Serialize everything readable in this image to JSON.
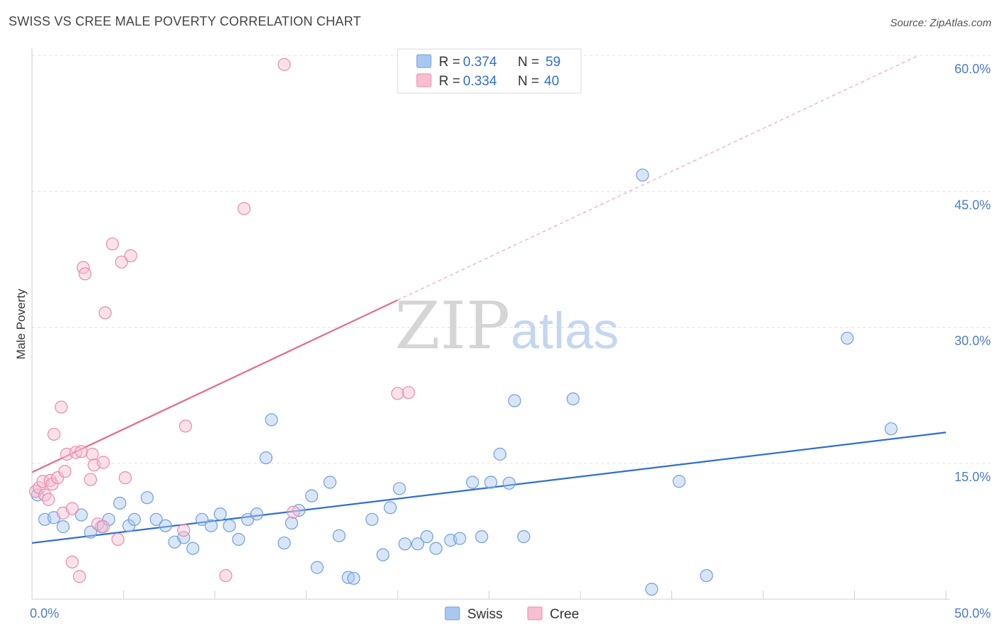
{
  "header": {
    "title": "SWISS VS CREE MALE POVERTY CORRELATION CHART",
    "source": "Source: ZipAtlas.com"
  },
  "watermark": {
    "zip": "ZIP",
    "atlas": "atlas"
  },
  "legend_top": [
    {
      "r_label": "R =",
      "r_value": "0.374",
      "n_label": "N =",
      "n_value": "59",
      "color": "#a9c8f0",
      "border": "#6f9fe0"
    },
    {
      "r_label": "R =",
      "r_value": "0.334",
      "n_label": "N =",
      "n_value": "40",
      "color": "#f7bfd0",
      "border": "#e98aab"
    }
  ],
  "legend_bottom": [
    {
      "label": "Swiss",
      "color": "#a9c8f0",
      "border": "#6f9fe0"
    },
    {
      "label": "Cree",
      "color": "#f7bfd0",
      "border": "#e98aab"
    }
  ],
  "chart_data": {
    "type": "scatter",
    "title": "SWISS VS CREE MALE POVERTY CORRELATION CHART",
    "xlabel": "",
    "ylabel": "Male Poverty",
    "xlim": [
      0,
      50
    ],
    "ylim": [
      0,
      60
    ],
    "x_tick_labels": [
      "0.0%",
      "50.0%"
    ],
    "y_ticks": [
      15,
      30,
      45,
      60
    ],
    "y_tick_labels": [
      "15.0%",
      "30.0%",
      "45.0%",
      "60.0%"
    ],
    "grid": true,
    "legend_position": "top-center",
    "series": [
      {
        "name": "Swiss",
        "color": "#6f9fe0",
        "fill": "#a9c8f0",
        "line_color": "#2f6fd0",
        "trend": {
          "x0": 0,
          "y0": 6.2,
          "x1": 50,
          "y1": 18.4,
          "dashed_until": 50
        },
        "points": [
          [
            0.3,
            11.5
          ],
          [
            0.7,
            8.8
          ],
          [
            1.2,
            9.0
          ],
          [
            1.7,
            8.0
          ],
          [
            2.7,
            9.3
          ],
          [
            3.2,
            7.4
          ],
          [
            3.8,
            8.0
          ],
          [
            4.2,
            8.8
          ],
          [
            4.8,
            10.6
          ],
          [
            5.3,
            8.1
          ],
          [
            5.6,
            8.8
          ],
          [
            6.3,
            11.2
          ],
          [
            6.8,
            8.8
          ],
          [
            7.3,
            8.1
          ],
          [
            7.8,
            6.3
          ],
          [
            8.3,
            6.8
          ],
          [
            8.8,
            5.6
          ],
          [
            9.3,
            8.8
          ],
          [
            9.8,
            8.1
          ],
          [
            10.3,
            9.4
          ],
          [
            10.8,
            8.1
          ],
          [
            11.3,
            6.6
          ],
          [
            11.8,
            8.8
          ],
          [
            12.3,
            9.4
          ],
          [
            12.8,
            15.6
          ],
          [
            13.1,
            19.8
          ],
          [
            13.8,
            6.2
          ],
          [
            14.2,
            8.4
          ],
          [
            14.6,
            9.8
          ],
          [
            15.3,
            11.4
          ],
          [
            15.6,
            3.5
          ],
          [
            16.3,
            12.9
          ],
          [
            16.8,
            7.0
          ],
          [
            17.3,
            2.4
          ],
          [
            17.6,
            2.3
          ],
          [
            18.6,
            8.8
          ],
          [
            19.2,
            4.9
          ],
          [
            19.6,
            10.1
          ],
          [
            20.1,
            12.2
          ],
          [
            20.4,
            6.1
          ],
          [
            21.1,
            6.1
          ],
          [
            21.6,
            6.9
          ],
          [
            22.1,
            5.6
          ],
          [
            22.9,
            6.5
          ],
          [
            23.4,
            6.7
          ],
          [
            24.1,
            12.9
          ],
          [
            24.6,
            6.9
          ],
          [
            25.1,
            12.9
          ],
          [
            25.6,
            16.0
          ],
          [
            26.1,
            12.8
          ],
          [
            26.4,
            21.9
          ],
          [
            26.9,
            6.9
          ],
          [
            29.6,
            22.1
          ],
          [
            33.4,
            46.8
          ],
          [
            33.9,
            1.1
          ],
          [
            35.4,
            13.0
          ],
          [
            36.9,
            2.6
          ],
          [
            44.6,
            28.8
          ],
          [
            47.0,
            18.8
          ]
        ]
      },
      {
        "name": "Cree",
        "color": "#e98aab",
        "fill": "#f7bfd0",
        "line_color": "#e46a94",
        "trend": {
          "x0": 0,
          "y0": 14.0,
          "x1": 20,
          "y1": 33.0,
          "dashed_x1": 48.5,
          "dashed_y1": 60.0
        },
        "points": [
          [
            0.2,
            11.9
          ],
          [
            0.4,
            12.3
          ],
          [
            0.6,
            13.0
          ],
          [
            0.7,
            11.5
          ],
          [
            0.9,
            11.0
          ],
          [
            1.0,
            13.1
          ],
          [
            1.1,
            12.7
          ],
          [
            1.2,
            18.2
          ],
          [
            1.4,
            13.4
          ],
          [
            1.6,
            21.2
          ],
          [
            1.7,
            9.5
          ],
          [
            1.8,
            14.1
          ],
          [
            1.9,
            16.0
          ],
          [
            2.2,
            10.0
          ],
          [
            2.2,
            4.1
          ],
          [
            2.4,
            16.2
          ],
          [
            2.6,
            2.5
          ],
          [
            2.7,
            16.3
          ],
          [
            2.8,
            36.6
          ],
          [
            2.9,
            35.9
          ],
          [
            3.2,
            13.2
          ],
          [
            3.3,
            16.0
          ],
          [
            3.4,
            14.8
          ],
          [
            3.6,
            8.3
          ],
          [
            3.9,
            8.0
          ],
          [
            3.9,
            15.1
          ],
          [
            4.0,
            31.6
          ],
          [
            4.4,
            39.2
          ],
          [
            4.7,
            6.6
          ],
          [
            4.9,
            37.2
          ],
          [
            5.1,
            13.4
          ],
          [
            5.4,
            37.9
          ],
          [
            8.3,
            7.6
          ],
          [
            8.4,
            19.1
          ],
          [
            10.6,
            2.6
          ],
          [
            11.6,
            43.1
          ],
          [
            13.8,
            59.0
          ],
          [
            14.3,
            9.6
          ],
          [
            20.0,
            22.7
          ],
          [
            20.6,
            22.8
          ]
        ]
      }
    ]
  }
}
